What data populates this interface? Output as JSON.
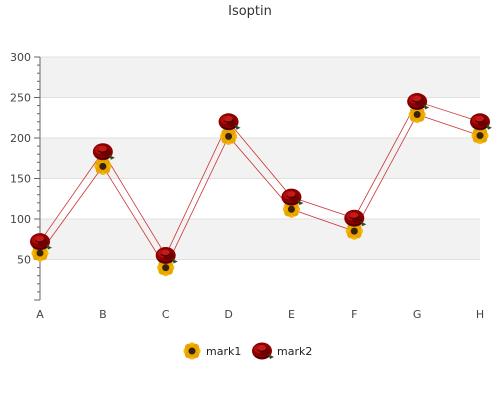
{
  "chart_data": {
    "type": "line",
    "title": "Isoptin",
    "categories": [
      "A",
      "B",
      "C",
      "D",
      "E",
      "F",
      "G",
      "H"
    ],
    "series": [
      {
        "name": "mark1",
        "values": [
          58,
          165,
          40,
          202,
          112,
          85,
          229,
          203
        ],
        "color": "#cc3333",
        "icon": "sunflower-icon"
      },
      {
        "name": "mark2",
        "values": [
          72,
          183,
          55,
          220,
          127,
          101,
          245,
          220
        ],
        "color": "#cc3333",
        "icon": "rose-icon"
      }
    ],
    "y_ticks": [
      "0",
      "50",
      "100",
      "150",
      "200",
      "250",
      "300"
    ],
    "ylim": [
      0,
      300
    ],
    "grid": true,
    "band_colors": [
      "#f2f2f2",
      "#ffffff"
    ],
    "legend_position": "bottom"
  }
}
